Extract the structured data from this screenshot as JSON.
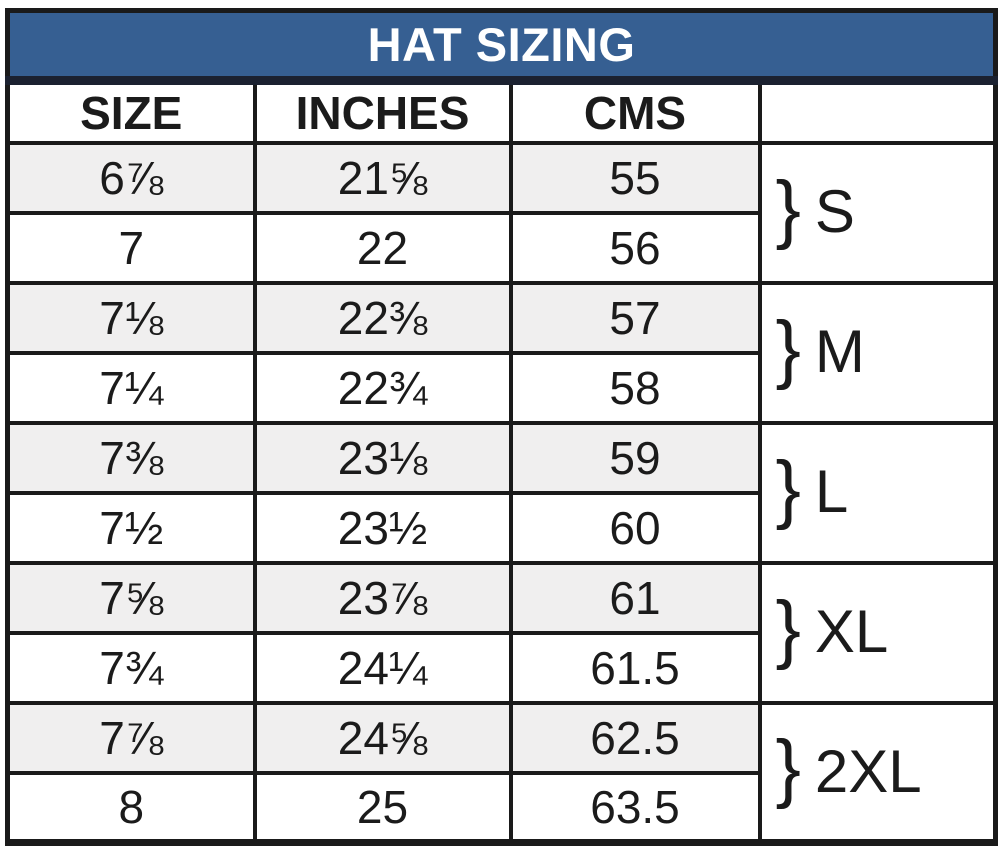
{
  "title": "HAT SIZING",
  "colors": {
    "header_bg": "#365f92",
    "title_text": "#ffffff",
    "title_border": "#1b2130",
    "border": "#1a1a1a",
    "shaded_row": "#f0efef"
  },
  "columns": {
    "size": "SIZE",
    "inches": "INCHES",
    "cms": "CMS",
    "group": ""
  },
  "group_brace": "}",
  "chart_data": {
    "type": "table",
    "title": "HAT SIZING",
    "columns": [
      "SIZE",
      "INCHES",
      "CMS",
      ""
    ],
    "rows": [
      {
        "size": "6⅞",
        "inches": "21⅝",
        "cms": "55"
      },
      {
        "size": "7",
        "inches": "22",
        "cms": "56"
      },
      {
        "size": "7⅛",
        "inches": "22⅜",
        "cms": "57"
      },
      {
        "size": "7¼",
        "inches": "22¾",
        "cms": "58"
      },
      {
        "size": "7⅜",
        "inches": "23⅛",
        "cms": "59"
      },
      {
        "size": "7½",
        "inches": "23½",
        "cms": "60"
      },
      {
        "size": "7⅝",
        "inches": "23⅞",
        "cms": "61"
      },
      {
        "size": "7¾",
        "inches": "24¼",
        "cms": "61.5"
      },
      {
        "size": "7⅞",
        "inches": "24⅝",
        "cms": "62.5"
      },
      {
        "size": "8",
        "inches": "25",
        "cms": "63.5"
      }
    ],
    "groups": [
      {
        "label": "S",
        "row_span": [
          0,
          1
        ]
      },
      {
        "label": "M",
        "row_span": [
          2,
          3
        ]
      },
      {
        "label": "L",
        "row_span": [
          4,
          5
        ]
      },
      {
        "label": "XL",
        "row_span": [
          6,
          7
        ]
      },
      {
        "label": "2XL",
        "row_span": [
          8,
          9
        ]
      }
    ],
    "layout": {
      "shaded_rows": [
        0,
        2,
        4,
        6,
        8
      ],
      "group_column_position": "right"
    }
  }
}
